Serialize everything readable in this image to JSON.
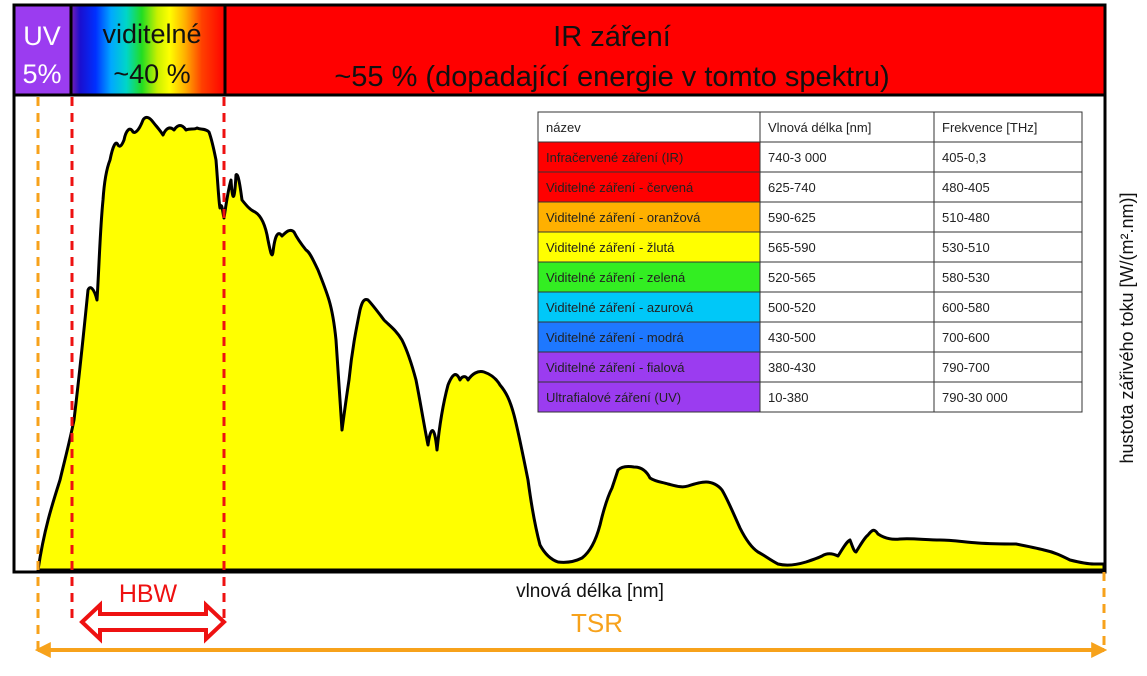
{
  "bands": {
    "uv": {
      "line1": "UV",
      "line2": "5%",
      "color": "#9b3cf0"
    },
    "visible": {
      "line1": "viditelné",
      "line2": "~40 %"
    },
    "ir": {
      "line1": "IR záření",
      "line2": "~55 % (dopadající energie v tomto spektru)",
      "color": "#ff0000"
    }
  },
  "labels": {
    "hbw": "HBW",
    "tsr": "TSR",
    "xlabel": "vlnová délka [nm]",
    "ylabel": "hustota zářivého toku [W/(m².nm)]"
  },
  "colors": {
    "spectrum_fill": "#ffff00",
    "hbw": "#ee1111",
    "tsr": "#f7a21b"
  },
  "table": {
    "headers": [
      "název",
      "Vlnová délka [nm]",
      "Frekvence [THz]"
    ],
    "rows": [
      {
        "name": "Infračervené záření (IR)",
        "wavelength": "740-3 000",
        "frequency": "405-0,3",
        "color": "#ff0000"
      },
      {
        "name": "Viditelné záření - červená",
        "wavelength": "625-740",
        "frequency": "480-405",
        "color": "#ff0000"
      },
      {
        "name": "Viditelné záření - oranžová",
        "wavelength": "590-625",
        "frequency": "510-480",
        "color": "#ffb000"
      },
      {
        "name": "Viditelné záření - žlutá",
        "wavelength": "565-590",
        "frequency": "530-510",
        "color": "#ffff00"
      },
      {
        "name": "Viditelné záření - zelená",
        "wavelength": "520-565",
        "frequency": "580-530",
        "color": "#33ee22"
      },
      {
        "name": "Viditelné záření - azurová",
        "wavelength": "500-520",
        "frequency": "600-580",
        "color": "#00c8f8"
      },
      {
        "name": "Viditelné záření - modrá",
        "wavelength": "430-500",
        "frequency": "700-600",
        "color": "#1e78ff"
      },
      {
        "name": "Viditelné záření - fialová",
        "wavelength": "380-430",
        "frequency": "790-700",
        "color": "#9b3cf0"
      },
      {
        "name": "Ultrafialové záření (UV)",
        "wavelength": "10-380",
        "frequency": "790-30 000",
        "color": "#9b3cf0"
      }
    ]
  },
  "chart_data": {
    "type": "area",
    "title": "",
    "xlabel": "vlnová délka [nm]",
    "ylabel": "hustota zářivého toku [W/(m².nm)]",
    "grid": false,
    "x_ticks_shown": false,
    "y_ticks_shown": false,
    "regions": [
      {
        "name": "UV",
        "share": "5%"
      },
      {
        "name": "viditelné",
        "share": "~40 %"
      },
      {
        "name": "IR záření",
        "share": "~55 %"
      }
    ],
    "series": [
      {
        "values_relative": [
          0,
          0.16,
          0.41,
          0.6,
          0.84,
          0.98,
          0.96,
          0.95,
          0.83,
          0.8,
          0.69,
          0.44,
          0.53,
          0.55,
          0.51,
          0.4,
          0.1,
          0.4,
          0.36,
          0.04,
          0.03,
          0.22,
          0.23,
          0.11,
          0.03,
          0.05,
          0.02,
          0.07,
          0.09,
          0.06,
          0.05,
          0.03,
          0.02
        ],
        "note_units": "relative intensity (0-1), no axis scale printed"
      }
    ]
  }
}
